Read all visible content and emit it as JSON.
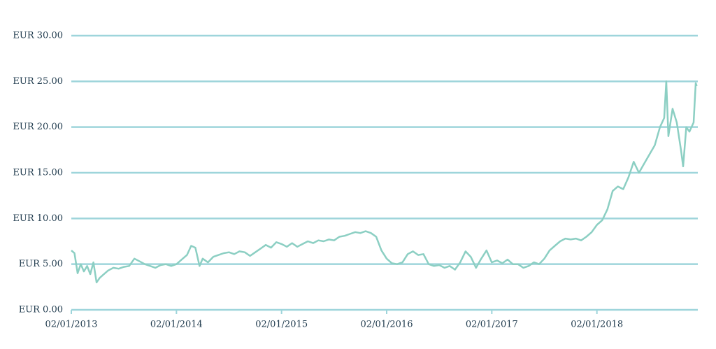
{
  "chart_data": {
    "type": "line",
    "x": [
      2013.0,
      2013.03,
      2013.06,
      2013.09,
      2013.12,
      2013.15,
      2013.18,
      2013.21,
      2013.24,
      2013.27,
      2013.3,
      2013.35,
      2013.4,
      2013.45,
      2013.5,
      2013.55,
      2013.6,
      2013.65,
      2013.7,
      2013.75,
      2013.8,
      2013.85,
      2013.9,
      2013.95,
      2014.0,
      2014.05,
      2014.1,
      2014.14,
      2014.18,
      2014.22,
      2014.25,
      2014.3,
      2014.35,
      2014.4,
      2014.45,
      2014.5,
      2014.55,
      2014.6,
      2014.65,
      2014.7,
      2014.75,
      2014.8,
      2014.85,
      2014.9,
      2014.95,
      2015.0,
      2015.05,
      2015.1,
      2015.15,
      2015.2,
      2015.25,
      2015.3,
      2015.35,
      2015.4,
      2015.45,
      2015.5,
      2015.55,
      2015.6,
      2015.65,
      2015.7,
      2015.75,
      2015.8,
      2015.85,
      2015.9,
      2015.95,
      2016.0,
      2016.05,
      2016.1,
      2016.15,
      2016.2,
      2016.25,
      2016.3,
      2016.35,
      2016.4,
      2016.45,
      2016.5,
      2016.55,
      2016.6,
      2016.65,
      2016.7,
      2016.75,
      2016.8,
      2016.85,
      2016.9,
      2016.95,
      2017.0,
      2017.05,
      2017.1,
      2017.15,
      2017.2,
      2017.25,
      2017.3,
      2017.35,
      2017.4,
      2017.45,
      2017.5,
      2017.55,
      2017.6,
      2017.65,
      2017.7,
      2017.75,
      2017.8,
      2017.85,
      2017.9,
      2017.95,
      2018.0,
      2018.05,
      2018.1,
      2018.15,
      2018.2,
      2018.25,
      2018.3,
      2018.35,
      2018.4,
      2018.45,
      2018.5,
      2018.55,
      2018.6,
      2018.64,
      2018.66,
      2018.68,
      2018.72,
      2018.76,
      2018.8,
      2018.82,
      2018.85,
      2018.88,
      2018.92,
      2018.94,
      2018.95
    ],
    "series": [
      {
        "color": "#8ccfc3",
        "values": [
          6.5,
          6.2,
          4.0,
          5.0,
          4.2,
          4.8,
          3.9,
          5.2,
          3.0,
          3.5,
          3.8,
          4.3,
          4.6,
          4.5,
          4.7,
          4.8,
          5.6,
          5.3,
          5.0,
          4.8,
          4.6,
          4.9,
          5.0,
          4.8,
          5.0,
          5.5,
          6.0,
          7.0,
          6.8,
          4.8,
          5.6,
          5.2,
          5.8,
          6.0,
          6.2,
          6.3,
          6.1,
          6.4,
          6.3,
          5.9,
          6.3,
          6.7,
          7.1,
          6.8,
          7.4,
          7.2,
          6.9,
          7.3,
          6.9,
          7.2,
          7.5,
          7.3,
          7.6,
          7.5,
          7.7,
          7.6,
          8.0,
          8.1,
          8.3,
          8.5,
          8.4,
          8.6,
          8.4,
          8.0,
          6.5,
          5.6,
          5.1,
          5.0,
          5.2,
          6.1,
          6.4,
          6.0,
          6.1,
          5.0,
          4.8,
          4.9,
          4.6,
          4.8,
          4.4,
          5.2,
          6.4,
          5.8,
          4.6,
          5.6,
          6.5,
          5.2,
          5.4,
          5.1,
          5.5,
          5.0,
          5.0,
          4.6,
          4.8,
          5.2,
          5.0,
          5.6,
          6.5,
          7.0,
          7.5,
          7.8,
          7.7,
          7.8,
          7.6,
          8.0,
          8.5,
          9.3,
          9.8,
          11.0,
          13.0,
          13.5,
          13.2,
          14.5,
          16.2,
          15.0,
          16.0,
          17.0,
          18.0,
          20.0,
          21.0,
          25.0,
          19.0,
          22.0,
          20.5,
          17.5,
          15.7,
          20.0,
          19.5,
          20.5,
          24.8,
          24.5
        ]
      }
    ],
    "xlim": [
      2013.0,
      2018.96
    ],
    "xticks": [
      {
        "value": 2013.0,
        "label": "02/01/2013"
      },
      {
        "value": 2014.0,
        "label": "02/01/2014"
      },
      {
        "value": 2015.0,
        "label": "02/01/2015"
      },
      {
        "value": 2016.0,
        "label": "02/01/2016"
      },
      {
        "value": 2017.0,
        "label": "02/01/2017"
      },
      {
        "value": 2018.0,
        "label": "02/01/2018"
      }
    ],
    "ylim": [
      0,
      30
    ],
    "yticks": [
      {
        "value": 0,
        "label": "EUR 0.00"
      },
      {
        "value": 5,
        "label": "EUR 5.00"
      },
      {
        "value": 10,
        "label": "EUR 10.00"
      },
      {
        "value": 15,
        "label": "EUR 15.00"
      },
      {
        "value": 20,
        "label": "EUR 20.00"
      },
      {
        "value": 25,
        "label": "EUR 25.00"
      },
      {
        "value": 30,
        "label": "EUR 30.00"
      }
    ],
    "grid": true,
    "grid_color": "#9ed5db"
  }
}
